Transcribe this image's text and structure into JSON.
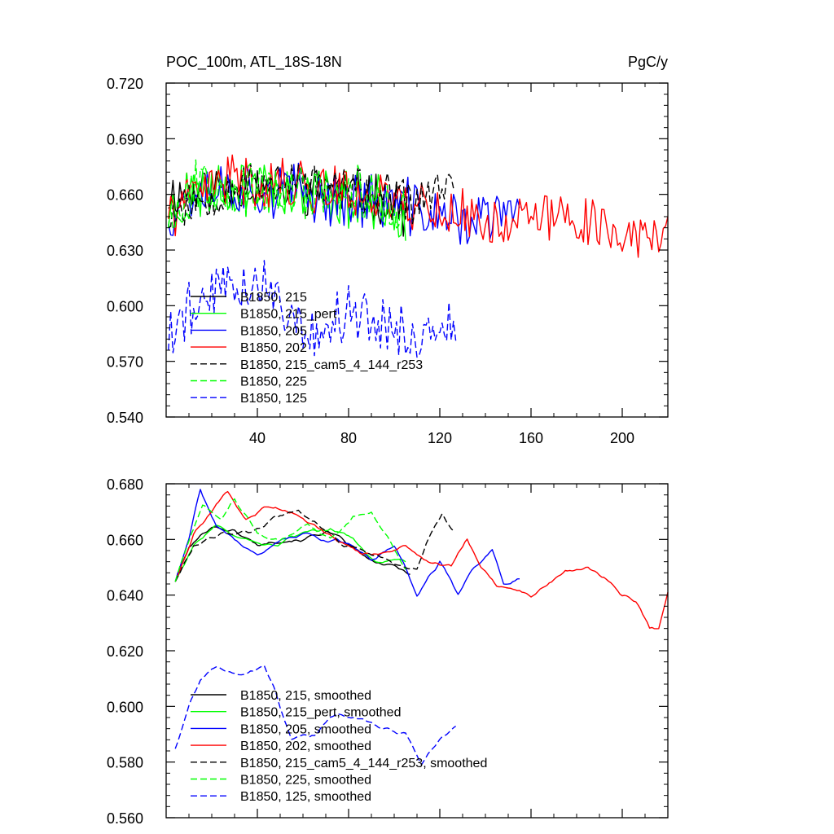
{
  "chart_data": [
    {
      "type": "line",
      "title": "POC_100m, ATL_18S-18N",
      "units": "PgC/y",
      "xlim": [
        0,
        220
      ],
      "ylim": [
        0.54,
        0.72
      ],
      "xticks": [
        40,
        80,
        120,
        160,
        200
      ],
      "xtick_labels": [
        "40",
        "80",
        "120",
        "160",
        "200"
      ],
      "yticks": [
        0.54,
        0.57,
        0.6,
        0.63,
        0.66,
        0.69,
        0.72
      ],
      "ytick_labels": [
        "0.540",
        "0.570",
        "0.600",
        "0.630",
        "0.660",
        "0.690",
        "0.720"
      ],
      "series": [
        {
          "name": "B1850, 215",
          "color": "#000000",
          "dash": "solid",
          "length": 107,
          "mean": 0.664,
          "amp": 0.012,
          "ampFinal": 0.011,
          "seed": 11,
          "anchors": [
            [
              1,
              0.66
            ],
            [
              30,
              0.665
            ],
            [
              60,
              0.662
            ],
            [
              90,
              0.66
            ],
            [
              107,
              0.65
            ]
          ]
        },
        {
          "name": "B1850, 215_pert",
          "color": "#00ff00",
          "dash": "solid",
          "length": 105,
          "mean": 0.66,
          "amp": 0.014,
          "ampFinal": 0.012,
          "seed": 23,
          "anchors": [
            [
              1,
              0.65
            ],
            [
              20,
              0.665
            ],
            [
              50,
              0.663
            ],
            [
              80,
              0.658
            ],
            [
              105,
              0.65
            ]
          ]
        },
        {
          "name": "B1850, 205",
          "color": "#0000ff",
          "dash": "solid",
          "length": 155,
          "mean": 0.654,
          "amp": 0.014,
          "ampFinal": 0.012,
          "seed": 37,
          "anchors": [
            [
              1,
              0.65
            ],
            [
              15,
              0.665
            ],
            [
              50,
              0.662
            ],
            [
              100,
              0.655
            ],
            [
              130,
              0.645
            ],
            [
              155,
              0.65
            ]
          ]
        },
        {
          "name": "B1850, 202",
          "color": "#ff0000",
          "dash": "solid",
          "length": 220,
          "mean": 0.65,
          "amp": 0.013,
          "ampFinal": 0.011,
          "seed": 41,
          "anchors": [
            [
              1,
              0.65
            ],
            [
              25,
              0.668
            ],
            [
              60,
              0.665
            ],
            [
              100,
              0.658
            ],
            [
              140,
              0.645
            ],
            [
              180,
              0.648
            ],
            [
              210,
              0.635
            ],
            [
              220,
              0.645
            ]
          ]
        },
        {
          "name": "B1850, 215_cam5_4_144_r253",
          "color": "#000000",
          "dash": "dashed",
          "length": 126,
          "mean": 0.66,
          "amp": 0.011,
          "ampFinal": 0.01,
          "seed": 53,
          "anchors": [
            [
              1,
              0.65
            ],
            [
              30,
              0.665
            ],
            [
              60,
              0.667
            ],
            [
              90,
              0.66
            ],
            [
              110,
              0.655
            ],
            [
              126,
              0.668
            ]
          ]
        },
        {
          "name": "B1850, 225",
          "color": "#00ff00",
          "dash": "dashed",
          "length": 105,
          "mean": 0.66,
          "amp": 0.014,
          "ampFinal": 0.012,
          "seed": 67,
          "anchors": [
            [
              1,
              0.65
            ],
            [
              15,
              0.668
            ],
            [
              45,
              0.66
            ],
            [
              80,
              0.662
            ],
            [
              105,
              0.65
            ]
          ]
        },
        {
          "name": "B1850, 125",
          "color": "#0000ff",
          "dash": "dashed",
          "length": 127,
          "mean": 0.595,
          "amp": 0.014,
          "ampFinal": 0.01,
          "seed": 79,
          "anchors": [
            [
              1,
              0.583
            ],
            [
              10,
              0.598
            ],
            [
              25,
              0.612
            ],
            [
              45,
              0.612
            ],
            [
              60,
              0.585
            ],
            [
              80,
              0.595
            ],
            [
              100,
              0.59
            ],
            [
              115,
              0.578
            ],
            [
              127,
              0.592
            ]
          ]
        }
      ],
      "legend": {
        "position": "lower-left"
      }
    },
    {
      "type": "line",
      "title": "",
      "xlim": [
        0,
        220
      ],
      "ylim": [
        0.56,
        0.68
      ],
      "yticks": [
        0.56,
        0.58,
        0.6,
        0.62,
        0.64,
        0.66,
        0.68
      ],
      "ytick_labels": [
        "0.560",
        "0.580",
        "0.600",
        "0.620",
        "0.640",
        "0.660",
        "0.680"
      ],
      "series": [
        {
          "name": "B1850, 215, smoothed",
          "color": "#000000",
          "dash": "solid",
          "length": 107,
          "amp": 0.002,
          "seed": 101,
          "anchors": [
            [
              4,
              0.645
            ],
            [
              10,
              0.657
            ],
            [
              20,
              0.665
            ],
            [
              30,
              0.663
            ],
            [
              40,
              0.658
            ],
            [
              50,
              0.66
            ],
            [
              60,
              0.66
            ],
            [
              70,
              0.663
            ],
            [
              80,
              0.658
            ],
            [
              90,
              0.652
            ],
            [
              100,
              0.65
            ],
            [
              107,
              0.648
            ]
          ]
        },
        {
          "name": "B1850, 215_pert, smoothed",
          "color": "#00ff00",
          "dash": "solid",
          "length": 105,
          "amp": 0.002,
          "seed": 103,
          "anchors": [
            [
              4,
              0.645
            ],
            [
              12,
              0.658
            ],
            [
              22,
              0.665
            ],
            [
              32,
              0.66
            ],
            [
              42,
              0.657
            ],
            [
              52,
              0.659
            ],
            [
              62,
              0.662
            ],
            [
              72,
              0.664
            ],
            [
              82,
              0.66
            ],
            [
              92,
              0.652
            ],
            [
              105,
              0.652
            ]
          ]
        },
        {
          "name": "B1850, 205, smoothed",
          "color": "#0000ff",
          "dash": "solid",
          "length": 155,
          "amp": 0.002,
          "seed": 107,
          "anchors": [
            [
              4,
              0.645
            ],
            [
              10,
              0.66
            ],
            [
              15,
              0.678
            ],
            [
              22,
              0.665
            ],
            [
              30,
              0.66
            ],
            [
              40,
              0.655
            ],
            [
              50,
              0.66
            ],
            [
              60,
              0.662
            ],
            [
              70,
              0.66
            ],
            [
              80,
              0.658
            ],
            [
              90,
              0.652
            ],
            [
              100,
              0.658
            ],
            [
              105,
              0.65
            ],
            [
              110,
              0.64
            ],
            [
              120,
              0.652
            ],
            [
              128,
              0.64
            ],
            [
              135,
              0.65
            ],
            [
              143,
              0.656
            ],
            [
              148,
              0.645
            ],
            [
              155,
              0.646
            ]
          ]
        },
        {
          "name": "B1850, 202, smoothed",
          "color": "#ff0000",
          "dash": "solid",
          "length": 220,
          "amp": 0.002,
          "seed": 109,
          "anchors": [
            [
              4,
              0.645
            ],
            [
              12,
              0.662
            ],
            [
              20,
              0.67
            ],
            [
              27,
              0.677
            ],
            [
              35,
              0.667
            ],
            [
              45,
              0.672
            ],
            [
              55,
              0.67
            ],
            [
              65,
              0.665
            ],
            [
              75,
              0.66
            ],
            [
              85,
              0.655
            ],
            [
              95,
              0.655
            ],
            [
              105,
              0.658
            ],
            [
              115,
              0.652
            ],
            [
              125,
              0.65
            ],
            [
              132,
              0.66
            ],
            [
              138,
              0.65
            ],
            [
              145,
              0.643
            ],
            [
              160,
              0.64
            ],
            [
              175,
              0.648
            ],
            [
              185,
              0.65
            ],
            [
              195,
              0.645
            ],
            [
              200,
              0.64
            ],
            [
              206,
              0.638
            ],
            [
              212,
              0.628
            ],
            [
              216,
              0.628
            ],
            [
              220,
              0.642
            ]
          ]
        },
        {
          "name": "B1850, 215_cam5_4_144_r253, smoothed",
          "color": "#000000",
          "dash": "dashed",
          "length": 126,
          "amp": 0.002,
          "seed": 113,
          "anchors": [
            [
              4,
              0.645
            ],
            [
              12,
              0.658
            ],
            [
              25,
              0.663
            ],
            [
              38,
              0.662
            ],
            [
              48,
              0.668
            ],
            [
              58,
              0.67
            ],
            [
              68,
              0.665
            ],
            [
              78,
              0.658
            ],
            [
              88,
              0.655
            ],
            [
              98,
              0.652
            ],
            [
              110,
              0.65
            ],
            [
              116,
              0.662
            ],
            [
              121,
              0.669
            ],
            [
              126,
              0.663
            ]
          ]
        },
        {
          "name": "B1850, 225, smoothed",
          "color": "#00ff00",
          "dash": "dashed",
          "length": 105,
          "amp": 0.002,
          "seed": 127,
          "anchors": [
            [
              4,
              0.645
            ],
            [
              10,
              0.66
            ],
            [
              16,
              0.672
            ],
            [
              24,
              0.668
            ],
            [
              30,
              0.675
            ],
            [
              40,
              0.662
            ],
            [
              50,
              0.66
            ],
            [
              62,
              0.665
            ],
            [
              72,
              0.66
            ],
            [
              82,
              0.668
            ],
            [
              90,
              0.67
            ],
            [
              98,
              0.66
            ],
            [
              105,
              0.65
            ]
          ]
        },
        {
          "name": "B1850, 125, smoothed",
          "color": "#0000ff",
          "dash": "dashed",
          "length": 127,
          "amp": 0.002,
          "seed": 131,
          "anchors": [
            [
              4,
              0.585
            ],
            [
              10,
              0.6
            ],
            [
              15,
              0.61
            ],
            [
              22,
              0.614
            ],
            [
              32,
              0.612
            ],
            [
              43,
              0.614
            ],
            [
              48,
              0.605
            ],
            [
              55,
              0.588
            ],
            [
              65,
              0.59
            ],
            [
              75,
              0.598
            ],
            [
              85,
              0.595
            ],
            [
              95,
              0.592
            ],
            [
              105,
              0.59
            ],
            [
              112,
              0.58
            ],
            [
              120,
              0.588
            ],
            [
              127,
              0.593
            ]
          ]
        }
      ],
      "legend": {
        "position": "lower-left"
      }
    }
  ]
}
